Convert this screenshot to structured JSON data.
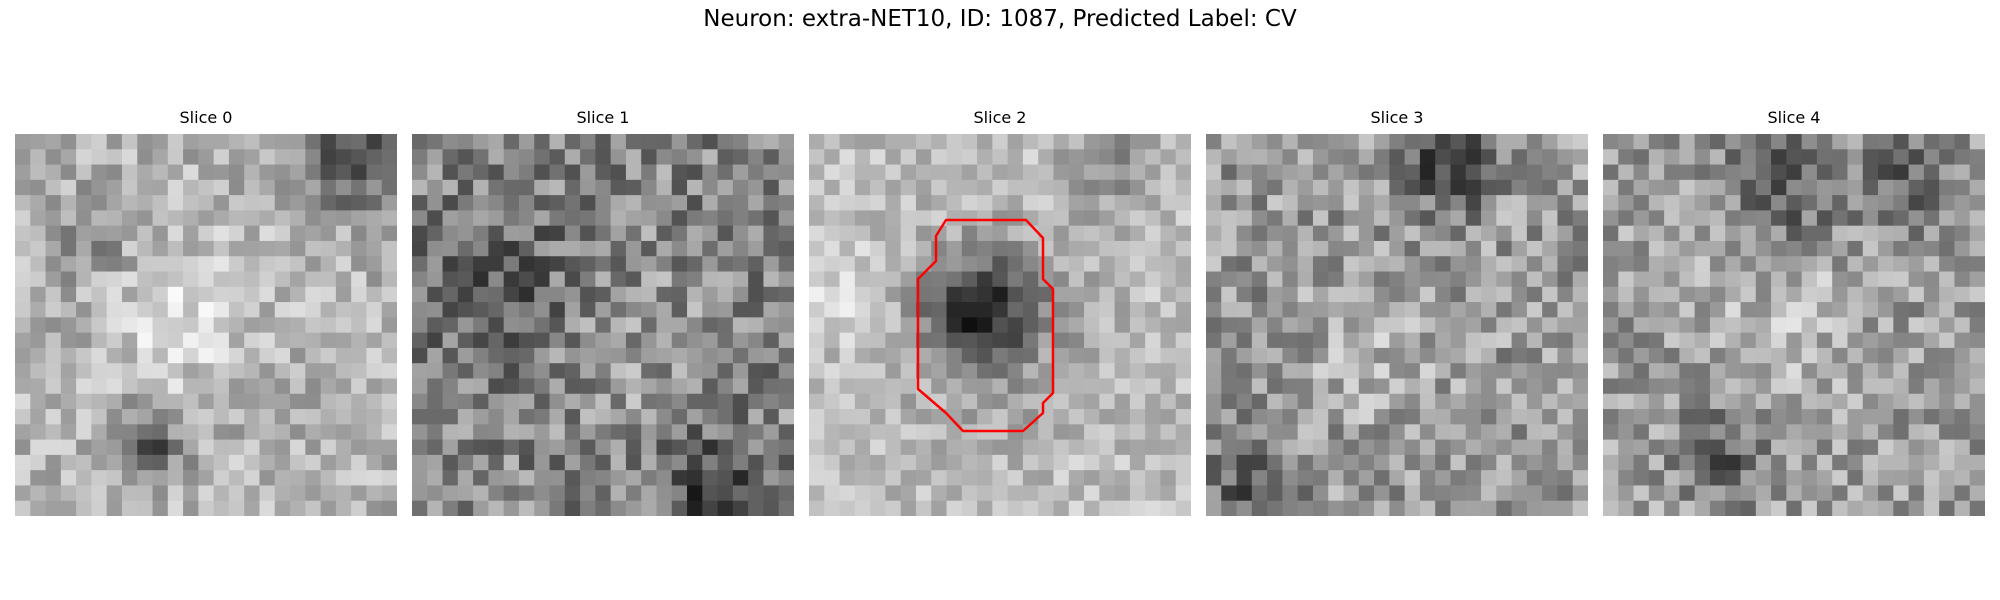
{
  "figure": {
    "title": "Neuron: extra-NET10, ID: 1087, Predicted Label: CV"
  },
  "panels": [
    {
      "title": "Slice 0",
      "seed": 11,
      "base": 0.7,
      "noise": 0.16
    },
    {
      "title": "Slice 1",
      "seed": 23,
      "base": 0.52,
      "noise": 0.22
    },
    {
      "title": "Slice 2",
      "seed": 37,
      "base": 0.74,
      "noise": 0.13
    },
    {
      "title": "Slice 3",
      "seed": 51,
      "base": 0.6,
      "noise": 0.2
    },
    {
      "title": "Slice 4",
      "seed": 67,
      "base": 0.62,
      "noise": 0.19
    }
  ],
  "colors": {
    "contour": "#ff0000",
    "background": "#ffffff"
  }
}
